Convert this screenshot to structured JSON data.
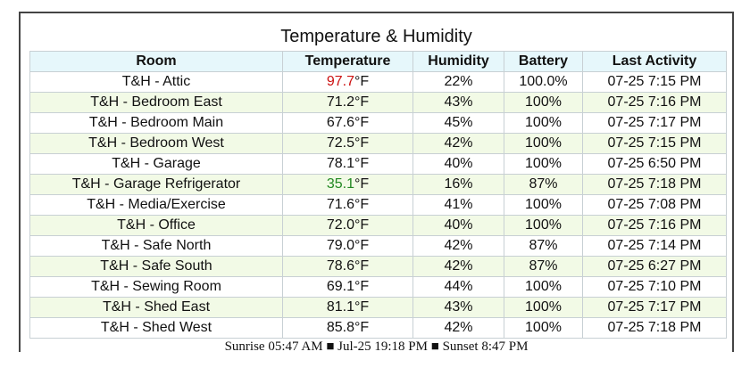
{
  "title": "Temperature & Humidity",
  "columns": [
    "Room",
    "Temperature",
    "Humidity",
    "Battery",
    "Last Activity"
  ],
  "rows": [
    {
      "room": "T&H - Attic",
      "temp_value": "97.7",
      "temp_unit": "°F",
      "temp_status": "hot",
      "humidity": "22%",
      "battery": "100.0%",
      "last_activity": "07-25 7:15 PM"
    },
    {
      "room": "T&H - Bedroom East",
      "temp_value": "71.2",
      "temp_unit": "°F",
      "temp_status": "normal",
      "humidity": "43%",
      "battery": "100%",
      "last_activity": "07-25 7:16 PM"
    },
    {
      "room": "T&H - Bedroom Main",
      "temp_value": "67.6",
      "temp_unit": "°F",
      "temp_status": "normal",
      "humidity": "45%",
      "battery": "100%",
      "last_activity": "07-25 7:17 PM"
    },
    {
      "room": "T&H - Bedroom West",
      "temp_value": "72.5",
      "temp_unit": "°F",
      "temp_status": "normal",
      "humidity": "42%",
      "battery": "100%",
      "last_activity": "07-25 7:15 PM"
    },
    {
      "room": "T&H - Garage",
      "temp_value": "78.1",
      "temp_unit": "°F",
      "temp_status": "normal",
      "humidity": "40%",
      "battery": "100%",
      "last_activity": "07-25 6:50 PM"
    },
    {
      "room": "T&H - Garage Refrigerator",
      "temp_value": "35.1",
      "temp_unit": "°F",
      "temp_status": "cold",
      "humidity": "16%",
      "battery": "87%",
      "last_activity": "07-25 7:18 PM"
    },
    {
      "room": "T&H - Media/Exercise",
      "temp_value": "71.6",
      "temp_unit": "°F",
      "temp_status": "normal",
      "humidity": "41%",
      "battery": "100%",
      "last_activity": "07-25 7:08 PM"
    },
    {
      "room": "T&H - Office",
      "temp_value": "72.0",
      "temp_unit": "°F",
      "temp_status": "normal",
      "humidity": "40%",
      "battery": "100%",
      "last_activity": "07-25 7:16 PM"
    },
    {
      "room": "T&H - Safe North",
      "temp_value": "79.0",
      "temp_unit": "°F",
      "temp_status": "normal",
      "humidity": "42%",
      "battery": "87%",
      "last_activity": "07-25 7:14 PM"
    },
    {
      "room": "T&H - Safe South",
      "temp_value": "78.6",
      "temp_unit": "°F",
      "temp_status": "normal",
      "humidity": "42%",
      "battery": "87%",
      "last_activity": "07-25 6:27 PM"
    },
    {
      "room": "T&H - Sewing Room",
      "temp_value": "69.1",
      "temp_unit": "°F",
      "temp_status": "normal",
      "humidity": "44%",
      "battery": "100%",
      "last_activity": "07-25 7:10 PM"
    },
    {
      "room": "T&H - Shed East",
      "temp_value": "81.1",
      "temp_unit": "°F",
      "temp_status": "normal",
      "humidity": "43%",
      "battery": "100%",
      "last_activity": "07-25 7:17 PM"
    },
    {
      "room": "T&H - Shed West",
      "temp_value": "85.8",
      "temp_unit": "°F",
      "temp_status": "normal",
      "humidity": "42%",
      "battery": "100%",
      "last_activity": "07-25 7:18 PM"
    }
  ],
  "footer": {
    "sunrise": "Sunrise 05:47 AM",
    "separator": "■",
    "datetime": "Jul-25 19:18 PM",
    "sunset": "Sunset 8:47 PM"
  },
  "colors": {
    "hot": "#cc1111",
    "cold": "#228822",
    "header_bg": "#e6f7fb",
    "alt_row_bg": "#f2fae6"
  }
}
